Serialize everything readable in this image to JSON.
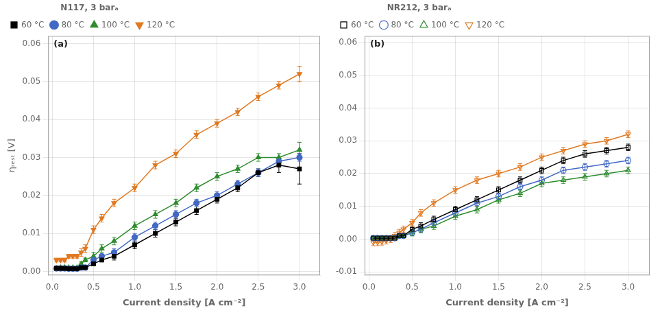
{
  "chart_data": [
    {
      "type": "line",
      "xlabel": "Current density [A cm⁻²]",
      "ylabel": "ηᵣₑₛₜ [V]",
      "annotations": [
        "(a)"
      ],
      "legend_title": "N117, 3 barₐ",
      "legend": "upper left",
      "grid": true,
      "xlim": [
        -0.05,
        3.25
      ],
      "xticks": [
        {
          "value": 0.0,
          "label": "0.0"
        },
        0.5,
        {
          "value": 1.0,
          "label": "1.0"
        },
        1.5,
        {
          "value": 2.0,
          "label": "2.0"
        },
        2.5,
        {
          "value": 3.0,
          "label": "3.0"
        }
      ],
      "ylim": [
        -0.001,
        0.062
      ],
      "yticks": [
        {
          "value": 0.0,
          "label": "0.00"
        },
        0.01,
        0.02,
        0.03,
        0.04,
        0.05,
        0.06
      ],
      "x": [
        0.05,
        0.1,
        0.15,
        0.2,
        0.25,
        0.3,
        0.35,
        0.4,
        0.5,
        0.6,
        0.75,
        1.0,
        1.25,
        1.5,
        1.75,
        2.0,
        2.25,
        2.5,
        2.75,
        3.0
      ],
      "series": [
        {
          "name": "60 °C",
          "color": "#000000",
          "marker": "square",
          "values": [
            0.0008,
            0.0008,
            0.0008,
            0.0007,
            0.0007,
            0.0007,
            0.001,
            0.001,
            0.002,
            0.003,
            0.004,
            0.007,
            0.01,
            0.013,
            0.016,
            0.019,
            0.022,
            0.026,
            0.028,
            0.027
          ],
          "errors": [
            0.0004,
            0.0004,
            0.0004,
            0.0004,
            0.0004,
            0.0004,
            0.0004,
            0.0004,
            0.0005,
            0.0005,
            0.001,
            0.001,
            0.001,
            0.001,
            0.001,
            0.001,
            0.001,
            0.001,
            0.002,
            0.004
          ]
        },
        {
          "name": "80 °C",
          "color": "#4169c4",
          "marker": "circle",
          "values": [
            0.0008,
            0.0008,
            0.0008,
            0.0007,
            0.0007,
            0.0007,
            0.001,
            0.001,
            0.003,
            0.004,
            0.005,
            0.009,
            0.012,
            0.015,
            0.018,
            0.02,
            0.023,
            0.026,
            0.029,
            0.03
          ],
          "errors": [
            0.0004,
            0.0004,
            0.0004,
            0.0004,
            0.0004,
            0.0004,
            0.0004,
            0.0004,
            0.0005,
            0.0005,
            0.001,
            0.001,
            0.001,
            0.001,
            0.001,
            0.001,
            0.001,
            0.001,
            0.001,
            0.001
          ]
        },
        {
          "name": "100 °C",
          "color": "#2e8b2e",
          "marker": "triangle up",
          "values": [
            0.0008,
            0.001,
            0.001,
            0.001,
            0.001,
            0.001,
            0.002,
            0.003,
            0.004,
            0.006,
            0.008,
            0.012,
            0.015,
            0.018,
            0.022,
            0.025,
            0.027,
            0.03,
            0.03,
            0.032
          ],
          "errors": [
            0.0004,
            0.0004,
            0.0004,
            0.0004,
            0.0004,
            0.0004,
            0.0005,
            0.0005,
            0.001,
            0.001,
            0.001,
            0.001,
            0.001,
            0.001,
            0.001,
            0.001,
            0.001,
            0.001,
            0.001,
            0.002
          ]
        },
        {
          "name": "120 °C",
          "color": "#e07820",
          "marker": "triangle down",
          "values": [
            0.003,
            0.003,
            0.003,
            0.004,
            0.004,
            0.004,
            0.005,
            0.006,
            0.011,
            0.014,
            0.018,
            0.022,
            0.028,
            0.031,
            0.036,
            0.039,
            0.042,
            0.046,
            0.049,
            0.052
          ],
          "errors": [
            0.0005,
            0.0005,
            0.0005,
            0.0005,
            0.0005,
            0.0005,
            0.001,
            0.001,
            0.001,
            0.001,
            0.001,
            0.001,
            0.001,
            0.001,
            0.001,
            0.001,
            0.001,
            0.001,
            0.001,
            0.002
          ]
        }
      ]
    },
    {
      "type": "line",
      "xlabel": "Current density [A cm⁻²]",
      "annotations": [
        "(b)"
      ],
      "legend_title": "NR212, 3 barₐ",
      "legend": "upper left",
      "grid": true,
      "xlim": [
        -0.05,
        3.25
      ],
      "xticks": [
        {
          "value": 0.0,
          "label": "0.0"
        },
        0.5,
        {
          "value": 1.0,
          "label": "1.0"
        },
        1.5,
        {
          "value": 2.0,
          "label": "2.0"
        },
        2.5,
        {
          "value": 3.0,
          "label": "3.0"
        }
      ],
      "ylim": [
        -0.011,
        0.062
      ],
      "yticks": [
        -0.01,
        {
          "value": 0.0,
          "label": "0.00"
        },
        0.01,
        0.02,
        0.03,
        0.04,
        0.05,
        0.06
      ],
      "x": [
        0.05,
        0.1,
        0.15,
        0.2,
        0.25,
        0.3,
        0.35,
        0.4,
        0.5,
        0.6,
        0.75,
        1.0,
        1.25,
        1.5,
        1.75,
        2.0,
        2.25,
        2.5,
        2.75,
        3.0
      ],
      "series": [
        {
          "name": "60 °C",
          "color": "#000000",
          "marker": "open square",
          "values": [
            0.0003,
            0.0003,
            0.0003,
            0.0003,
            0.0003,
            0.0003,
            0.001,
            0.001,
            0.003,
            0.004,
            0.006,
            0.009,
            0.012,
            0.015,
            0.018,
            0.021,
            0.024,
            0.026,
            0.027,
            0.028
          ],
          "errors": [
            0.0002,
            0.0002,
            0.0002,
            0.0002,
            0.0002,
            0.0002,
            0.0003,
            0.0003,
            0.001,
            0.001,
            0.001,
            0.001,
            0.001,
            0.001,
            0.001,
            0.001,
            0.001,
            0.001,
            0.001,
            0.001
          ]
        },
        {
          "name": "80 °C",
          "color": "#4169c4",
          "marker": "open circle",
          "values": [
            0.0003,
            0.0003,
            0.0003,
            0.0003,
            0.0003,
            0.0003,
            0.001,
            0.001,
            0.002,
            0.003,
            0.005,
            0.008,
            0.011,
            0.013,
            0.016,
            0.018,
            0.021,
            0.022,
            0.023,
            0.024
          ],
          "errors": [
            0.0002,
            0.0002,
            0.0002,
            0.0002,
            0.0002,
            0.0002,
            0.0003,
            0.0003,
            0.001,
            0.001,
            0.001,
            0.001,
            0.001,
            0.001,
            0.001,
            0.001,
            0.001,
            0.001,
            0.001,
            0.001
          ]
        },
        {
          "name": "100 °C",
          "color": "#2e8b2e",
          "marker": "open triangle up",
          "values": [
            0.0003,
            0.0003,
            0.0003,
            0.0003,
            0.0003,
            0.0003,
            0.001,
            0.001,
            0.002,
            0.003,
            0.004,
            0.007,
            0.009,
            0.012,
            0.014,
            0.017,
            0.018,
            0.019,
            0.02,
            0.021
          ],
          "errors": [
            0.0002,
            0.0002,
            0.0002,
            0.0002,
            0.0002,
            0.0002,
            0.0003,
            0.0003,
            0.001,
            0.001,
            0.001,
            0.001,
            0.001,
            0.001,
            0.001,
            0.001,
            0.001,
            0.001,
            0.001,
            0.001
          ]
        },
        {
          "name": "120 °C",
          "color": "#e07820",
          "marker": "open triangle down",
          "values": [
            -0.001,
            -0.001,
            -0.0008,
            -0.0005,
            0.0,
            0.001,
            0.002,
            0.003,
            0.005,
            0.008,
            0.011,
            0.015,
            0.018,
            0.02,
            0.022,
            0.025,
            0.027,
            0.029,
            0.03,
            0.032
          ],
          "errors": [
            0.001,
            0.001,
            0.001,
            0.001,
            0.001,
            0.001,
            0.001,
            0.001,
            0.001,
            0.001,
            0.001,
            0.001,
            0.001,
            0.001,
            0.001,
            0.001,
            0.001,
            0.001,
            0.001,
            0.001
          ]
        }
      ]
    }
  ]
}
